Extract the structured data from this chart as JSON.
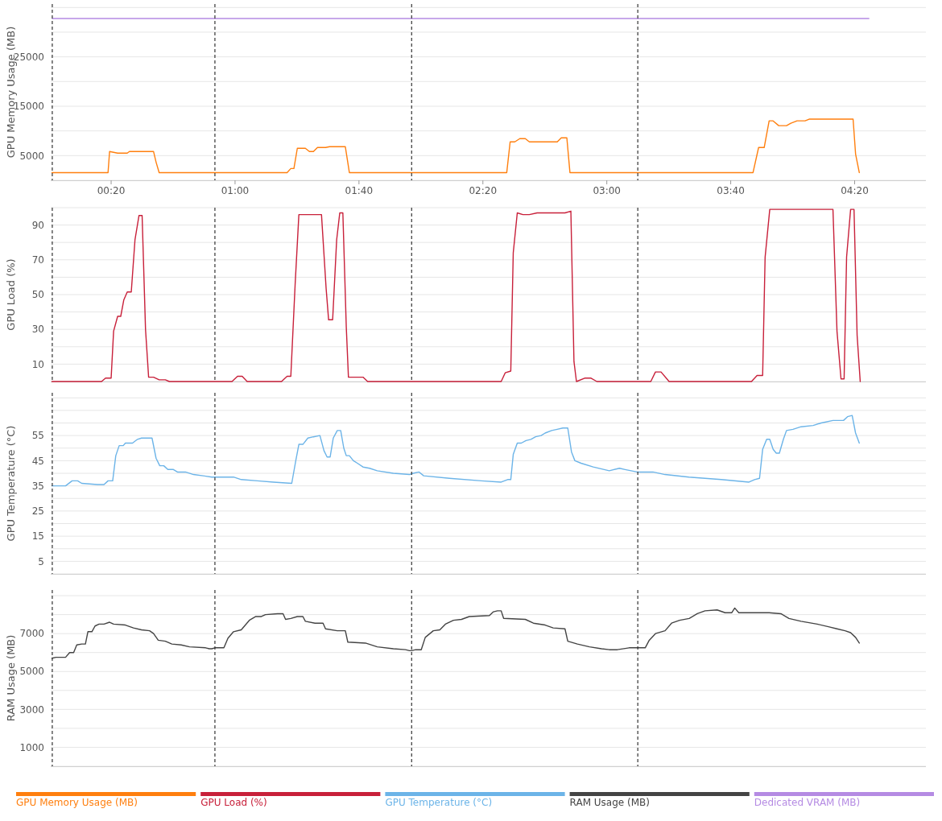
{
  "chart_data": [
    {
      "type": "line",
      "ylabel": "GPU Memory Usage (MB)",
      "xlim": [
        0.5,
        283
      ],
      "xticks": [
        {
          "value": 20,
          "label": "00:20"
        },
        {
          "value": 60,
          "label": "01:00"
        },
        {
          "value": 100,
          "label": "01:40"
        },
        {
          "value": 140,
          "label": "02:20"
        },
        {
          "value": 180,
          "label": "03:00"
        },
        {
          "value": 220,
          "label": "03:40"
        },
        {
          "value": 260,
          "label": "04:20"
        }
      ],
      "ylim": [
        0,
        35700
      ],
      "yticks": [
        {
          "value": 0,
          "label": null
        },
        {
          "value": 5000,
          "label": "5000"
        },
        {
          "value": 10000,
          "label": null
        },
        {
          "value": 15000,
          "label": "15000"
        },
        {
          "value": 20000,
          "label": null
        },
        {
          "value": 25000,
          "label": "25000"
        },
        {
          "value": 30000,
          "label": null
        },
        {
          "value": 35000,
          "label": null
        }
      ],
      "grid": "y",
      "marker": "none",
      "legend": "bottom",
      "ref_lines": [
        {
          "axis": "x",
          "value": 1,
          "line_style": "dashed",
          "color": "#333333"
        },
        {
          "axis": "x",
          "value": 53.5,
          "line_style": "dashed",
          "color": "#333333"
        },
        {
          "axis": "x",
          "value": 117,
          "line_style": "dashed",
          "color": "#333333"
        },
        {
          "axis": "x",
          "value": 190,
          "line_style": "dashed",
          "color": "#333333"
        }
      ],
      "series": [
        {
          "name": "GPU Memory Usage (MB)",
          "color": "#ff7f0e",
          "x": [
            0.9,
            19,
            19.5,
            22.1,
            25.2,
            25.9,
            33.7,
            34.5,
            35.5,
            52.5,
            53.5,
            76.8,
            78,
            79,
            80.1,
            82.7,
            84,
            85.3,
            86.6,
            89.2,
            90.5,
            95.6,
            96.9,
            116.3,
            117.5,
            147.7,
            148.8,
            150.3,
            151.9,
            153.7,
            155,
            164,
            165.3,
            167.1,
            168.1,
            189.8,
            190.3,
            227.2,
            229,
            230.8,
            232.4,
            233.6,
            235.5,
            238,
            239.4,
            241.4,
            244,
            245.3,
            259.5,
            260.3,
            261.5
          ],
          "values": [
            1560,
            1560,
            5820,
            5500,
            5500,
            5820,
            5820,
            3690,
            1560,
            1560,
            1560,
            1560,
            2380,
            2400,
            6480,
            6480,
            5820,
            5820,
            6640,
            6640,
            6800,
            6800,
            1560,
            1560,
            1560,
            1560,
            7790,
            7790,
            8440,
            8440,
            7790,
            7790,
            8600,
            8600,
            1560,
            1560,
            1560,
            1560,
            6640,
            6640,
            12050,
            12050,
            11070,
            11070,
            11560,
            12050,
            12050,
            12380,
            12380,
            5330,
            1560
          ]
        },
        {
          "name": "Dedicated VRAM (MB)",
          "color": "#b58be3",
          "x": [
            1,
            264.6
          ],
          "values": [
            32768,
            32768
          ]
        }
      ]
    },
    {
      "type": "line",
      "ylabel": "GPU Load (%)",
      "xlim": [
        0.5,
        283
      ],
      "tick_labels": "y",
      "ylim": [
        0,
        100
      ],
      "yticks": [
        {
          "value": 0,
          "label": null
        },
        {
          "value": 10,
          "label": "10"
        },
        {
          "value": 20,
          "label": null
        },
        {
          "value": 30,
          "label": "30"
        },
        {
          "value": 40,
          "label": null
        },
        {
          "value": 50,
          "label": "50"
        },
        {
          "value": 60,
          "label": null
        },
        {
          "value": 70,
          "label": "70"
        },
        {
          "value": 80,
          "label": null
        },
        {
          "value": 90,
          "label": "90"
        },
        {
          "value": 100,
          "label": null
        }
      ],
      "grid": "y",
      "marker": "none",
      "legend": "bottom",
      "ref_lines": [
        {
          "axis": "x",
          "value": 1,
          "line_style": "dashed",
          "color": "#333333"
        },
        {
          "axis": "x",
          "value": 53.5,
          "line_style": "dashed",
          "color": "#333333"
        },
        {
          "axis": "x",
          "value": 117,
          "line_style": "dashed",
          "color": "#333333"
        },
        {
          "axis": "x",
          "value": 190,
          "line_style": "dashed",
          "color": "#333333"
        }
      ],
      "series": [
        {
          "name": "GPU Load (%)",
          "color": "#c8203a",
          "x": [
            0.9,
            16.9,
            18.2,
            20,
            20.8,
            22.1,
            23.1,
            24.1,
            25.2,
            26.5,
            27.7,
            29,
            30,
            31.1,
            32.1,
            33.7,
            35.5,
            37.5,
            38.8,
            52.5,
            53.5,
            59,
            60.8,
            62.3,
            63.9,
            75,
            76.8,
            78,
            79.4,
            80.6,
            87.9,
            89.4,
            90.2,
            91.5,
            92.8,
            93.8,
            94.8,
            95.9,
            96.6,
            101.3,
            102.8,
            116.3,
            117.5,
            145.9,
            147.2,
            149,
            149.8,
            151.1,
            152.9,
            155,
            157.5,
            166.5,
            168.4,
            169.4,
            170.2,
            173,
            174.8,
            176.8,
            189.3,
            190.3,
            194.2,
            195.7,
            197.5,
            199.4,
            200.1,
            226.7,
            228.5,
            230.3,
            231.1,
            232.6,
            253,
            254.3,
            255.6,
            256.6,
            257.4,
            258.7,
            259.8,
            260.8,
            261.8
          ],
          "values": [
            0,
            0,
            2,
            2,
            29,
            37.5,
            37.5,
            47,
            51.5,
            51.5,
            81.5,
            95.5,
            95.5,
            30,
            2.5,
            2.5,
            1,
            1,
            0,
            0,
            0,
            0,
            3,
            3,
            0,
            0,
            3,
            3,
            56,
            96,
            96,
            53.5,
            35.5,
            35.5,
            81.5,
            97,
            97,
            31.5,
            2.5,
            2.5,
            0,
            0,
            0,
            0,
            5,
            6,
            74,
            97,
            96,
            96,
            97,
            97,
            98,
            11.5,
            0,
            2,
            2,
            0,
            0,
            0,
            0,
            5.5,
            5.5,
            1.5,
            0,
            0,
            3.5,
            3.5,
            71.5,
            99,
            99,
            29,
            1.5,
            1.5,
            71.5,
            99,
            99,
            26.5,
            0
          ]
        }
      ]
    },
    {
      "type": "line",
      "ylabel": "GPU Temperature (°C)",
      "xlim": [
        0.5,
        283
      ],
      "tick_labels": "y",
      "ylim": [
        0,
        72
      ],
      "yticks": [
        {
          "value": 0,
          "label": null
        },
        {
          "value": 5,
          "label": "5"
        },
        {
          "value": 10,
          "label": null
        },
        {
          "value": 15,
          "label": "15"
        },
        {
          "value": 20,
          "label": null
        },
        {
          "value": 25,
          "label": "25"
        },
        {
          "value": 30,
          "label": null
        },
        {
          "value": 35,
          "label": "35"
        },
        {
          "value": 40,
          "label": null
        },
        {
          "value": 45,
          "label": "45"
        },
        {
          "value": 50,
          "label": null
        },
        {
          "value": 55,
          "label": "55"
        },
        {
          "value": 60,
          "label": null
        },
        {
          "value": 65,
          "label": null
        },
        {
          "value": 70,
          "label": null
        }
      ],
      "grid": "y",
      "marker": "none",
      "legend": "bottom",
      "ref_lines": [
        {
          "axis": "x",
          "value": 1,
          "line_style": "dashed",
          "color": "#333333"
        },
        {
          "axis": "x",
          "value": 53.5,
          "line_style": "dashed",
          "color": "#333333"
        },
        {
          "axis": "x",
          "value": 117,
          "line_style": "dashed",
          "color": "#333333"
        },
        {
          "axis": "x",
          "value": 190,
          "line_style": "dashed",
          "color": "#333333"
        }
      ],
      "series": [
        {
          "name": "GPU Temperature (°C)",
          "color": "#6cb4e8",
          "x": [
            0.9,
            5.3,
            7.4,
            9.2,
            10.5,
            15.6,
            17.7,
            19,
            20.5,
            21.5,
            22.6,
            23.9,
            24.6,
            26.9,
            28.5,
            29.8,
            33.2,
            34.5,
            35.7,
            37,
            38.3,
            40.1,
            41.4,
            44,
            46.6,
            49.7,
            52.5,
            53.5,
            59.5,
            62,
            67.2,
            72.4,
            78.3,
            79.6,
            80.6,
            81.9,
            83.5,
            85.3,
            87.4,
            88.7,
            89.7,
            90.7,
            91.7,
            93,
            94.1,
            95.1,
            95.9,
            96.9,
            98.2,
            99.5,
            101.3,
            103.4,
            105.9,
            111.1,
            116.3,
            117.5,
            119.4,
            120.9,
            129.2,
            139.5,
            145.9,
            148,
            149,
            149.8,
            151.1,
            152.4,
            153.9,
            155.5,
            157,
            158.8,
            160.1,
            162.2,
            164,
            165.8,
            167.4,
            168.6,
            169.7,
            171.7,
            175.6,
            180.8,
            184.1,
            185.9,
            189.8,
            190.3,
            194.9,
            198.8,
            206.5,
            216.9,
            225.9,
            227.7,
            229.3,
            230.3,
            231.6,
            232.6,
            233.7,
            234.7,
            235.7,
            237,
            238,
            240.1,
            242.7,
            246.6,
            249.2,
            253,
            256.4,
            257.7,
            259.2,
            260.3,
            261.5
          ],
          "values": [
            35,
            35,
            37,
            37,
            36,
            35.5,
            35.5,
            37,
            37,
            47,
            51,
            51,
            52,
            52,
            53.5,
            54,
            54,
            46,
            43,
            43,
            41.5,
            41.5,
            40.5,
            40.5,
            39.5,
            39,
            38.5,
            38.5,
            38.5,
            37.5,
            37,
            36.5,
            36,
            45,
            51.5,
            51.5,
            54,
            54.5,
            55,
            49,
            46.5,
            46.5,
            54,
            57,
            57,
            50,
            47,
            47,
            45,
            44,
            42.5,
            42,
            41,
            40,
            39.5,
            40,
            40.5,
            39,
            38,
            37,
            36.5,
            37.5,
            37.5,
            47.5,
            52,
            52,
            53,
            53.5,
            54.5,
            55,
            56,
            57,
            57.5,
            58,
            58,
            48.5,
            45,
            44,
            42.5,
            41,
            42,
            41.5,
            40.5,
            40.5,
            40.5,
            39.5,
            38.5,
            37.5,
            36.5,
            37.5,
            38,
            49.5,
            53.5,
            53.5,
            49.5,
            48,
            48,
            53.5,
            57,
            57.5,
            58.5,
            59,
            60,
            61,
            61,
            62.5,
            63,
            56,
            52
          ]
        }
      ]
    },
    {
      "type": "line",
      "ylabel": "RAM Usage (MB)",
      "xlim": [
        0.5,
        283
      ],
      "tick_labels": "y",
      "ylim": [
        0,
        9300
      ],
      "yticks": [
        {
          "value": 0,
          "label": null
        },
        {
          "value": 1000,
          "label": "1000"
        },
        {
          "value": 2000,
          "label": null
        },
        {
          "value": 3000,
          "label": "3000"
        },
        {
          "value": 4000,
          "label": null
        },
        {
          "value": 5000,
          "label": "5000"
        },
        {
          "value": 6000,
          "label": null
        },
        {
          "value": 7000,
          "label": "7000"
        },
        {
          "value": 8000,
          "label": null
        },
        {
          "value": 9000,
          "label": null
        }
      ],
      "grid": "y",
      "marker": "none",
      "legend": "bottom",
      "ref_lines": [
        {
          "axis": "x",
          "value": 1,
          "line_style": "dashed",
          "color": "#333333"
        },
        {
          "axis": "x",
          "value": 53.5,
          "line_style": "dashed",
          "color": "#333333"
        },
        {
          "axis": "x",
          "value": 117,
          "line_style": "dashed",
          "color": "#333333"
        },
        {
          "axis": "x",
          "value": 190,
          "line_style": "dashed",
          "color": "#333333"
        }
      ],
      "series": [
        {
          "name": "RAM Usage (MB)",
          "color": "#444444",
          "x": [
            0.9,
            2.2,
            5.3,
            6.6,
            7.9,
            8.9,
            10.5,
            11.7,
            12.5,
            13.8,
            14.8,
            16.1,
            17.7,
            19.5,
            20.8,
            24.6,
            27.2,
            29.8,
            32.4,
            33.7,
            35.2,
            37.5,
            39.6,
            42.6,
            45.3,
            50.5,
            51.7,
            52.5,
            53.5,
            56.4,
            57.7,
            59.5,
            62,
            64.6,
            66.7,
            68.5,
            69.8,
            73.7,
            75.5,
            76.3,
            78,
            80.1,
            81.9,
            82.7,
            85.8,
            88.4,
            89.2,
            93,
            95.6,
            96.4,
            102.1,
            105.9,
            111.1,
            115,
            116.3,
            117,
            118.3,
            120.1,
            121.4,
            124,
            126.1,
            127.9,
            130.5,
            133.1,
            135.6,
            142.1,
            143.4,
            144.7,
            145.9,
            146.7,
            153.7,
            156.3,
            160.1,
            162.7,
            166.5,
            167.4,
            170.5,
            174.4,
            178.3,
            180.8,
            183.4,
            187.2,
            189.3,
            190.3,
            192.4,
            193.7,
            195.7,
            198.8,
            200.9,
            203.5,
            206.6,
            209.2,
            211.7,
            215.6,
            218.2,
            220.3,
            221.3,
            222.6,
            232.4,
            236.2,
            238.8,
            242.7,
            247.9,
            251.8,
            254.3,
            256.9,
            258.7,
            260.3,
            261.5
          ],
          "values": [
            5700,
            5750,
            5750,
            6000,
            6000,
            6400,
            6450,
            6450,
            7100,
            7100,
            7400,
            7500,
            7500,
            7600,
            7500,
            7450,
            7300,
            7200,
            7150,
            7000,
            6650,
            6600,
            6450,
            6400,
            6300,
            6250,
            6200,
            6200,
            6250,
            6250,
            6750,
            7100,
            7200,
            7700,
            7900,
            7900,
            8000,
            8050,
            8050,
            7750,
            7800,
            7900,
            7900,
            7650,
            7550,
            7550,
            7250,
            7150,
            7150,
            6550,
            6500,
            6300,
            6200,
            6150,
            6100,
            6100,
            6150,
            6150,
            6800,
            7150,
            7200,
            7500,
            7700,
            7750,
            7900,
            7950,
            8150,
            8200,
            8200,
            7800,
            7750,
            7550,
            7450,
            7300,
            7250,
            6600,
            6450,
            6300,
            6200,
            6150,
            6150,
            6250,
            6250,
            6250,
            6250,
            6650,
            7000,
            7150,
            7550,
            7700,
            7800,
            8050,
            8200,
            8250,
            8100,
            8100,
            8350,
            8100,
            8100,
            8050,
            7800,
            7650,
            7500,
            7350,
            7250,
            7150,
            7050,
            6800,
            6500
          ]
        }
      ]
    }
  ]
}
